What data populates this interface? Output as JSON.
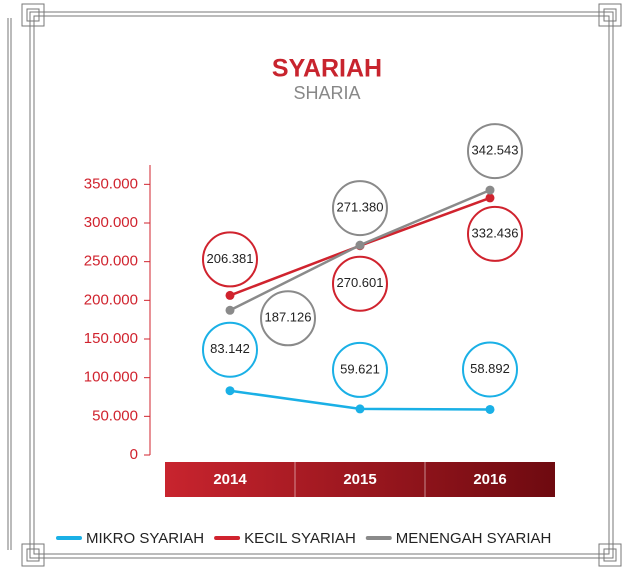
{
  "chart_data": {
    "type": "line",
    "title": "SYARIAH",
    "subtitle": "SHARIA",
    "categories": [
      "2014",
      "2015",
      "2016"
    ],
    "series": [
      {
        "name": "MIKRO SYARIAH",
        "color": "#1ab0e6",
        "values": [
          83142,
          59621,
          58892
        ],
        "value_labels": [
          "83.142",
          "59.621",
          "58.892"
        ]
      },
      {
        "name": "KECIL SYARIAH",
        "color": "#d0232e",
        "values": [
          206381,
          270601,
          332436
        ],
        "value_labels": [
          "206.381",
          "270.601",
          "332.436"
        ]
      },
      {
        "name": "MENENGAH SYARIAH",
        "color": "#8a8a8a",
        "values": [
          187126,
          271380,
          342543
        ],
        "value_labels": [
          "187.126",
          "271.380",
          "342.543"
        ]
      }
    ],
    "ylim": [
      0,
      375000
    ],
    "yticks": [
      0,
      {
        "value": 50000,
        "label": "50.000"
      },
      {
        "value": 100000,
        "label": "100.000"
      },
      {
        "value": 150000,
        "label": "150.000"
      },
      {
        "value": 200000,
        "label": "200.000"
      },
      {
        "value": 250000,
        "label": "250.000"
      },
      {
        "value": 300000,
        "label": "300.000"
      },
      {
        "value": 350000,
        "label": "350.000"
      }
    ],
    "legend": "bottom"
  }
}
